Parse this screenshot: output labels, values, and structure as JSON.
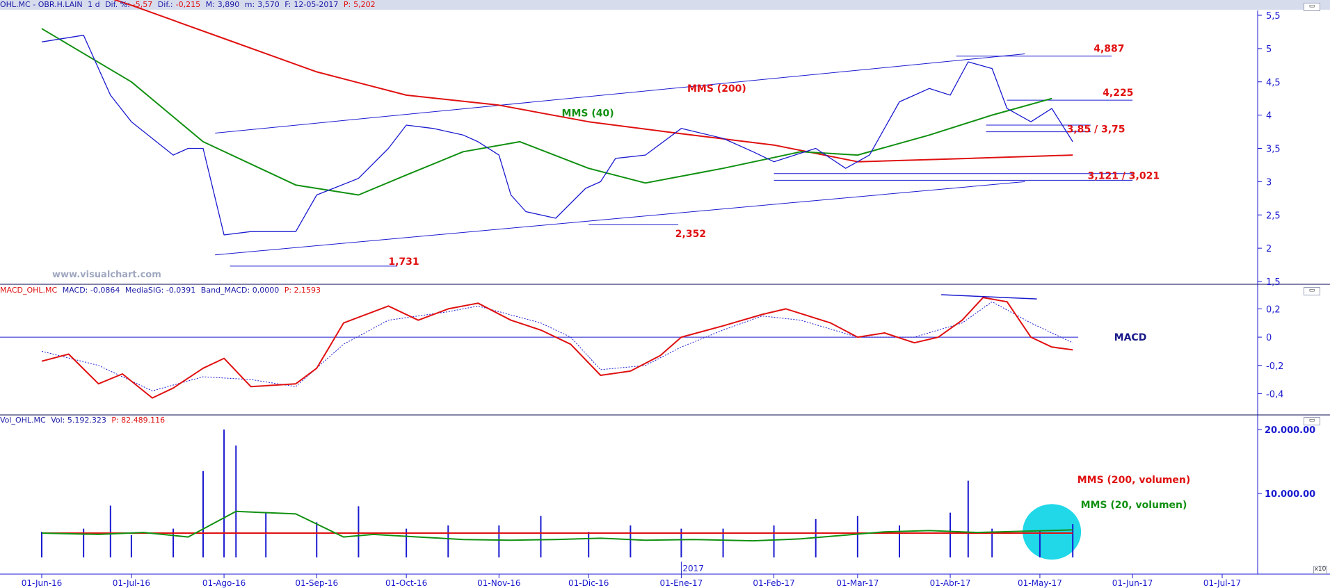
{
  "colors": {
    "price_line": "#1a1ad0",
    "mms200": "#e01010",
    "mms40": "#109010",
    "macd": "#e01010",
    "macd_signal": "#1a1ad0",
    "volume": "#1a1ad0",
    "highlight": "#20d8e8",
    "annotation_red": "#e01010",
    "axis_text": "#1a1ad0"
  },
  "price_header": {
    "symbol": "OHL.MC - OBR.H.LAIN",
    "period": "1 d",
    "change_pct_label": "Dif. %:",
    "change_pct": "-5,57",
    "change_label": "Dif.:",
    "change": "-0,215",
    "max_label": "M:",
    "max": "3,890",
    "min_label": "m:",
    "min": "3,570",
    "date_label": "F:",
    "date": "12-05-2017",
    "p_label": "P:",
    "p": "5,202"
  },
  "macd_header": {
    "symbol": "MACD_OHL.MC",
    "macd": "MACD: -0,0864",
    "signal": "MediaSIG: -0,0391",
    "band": "Band_MACD: 0,0000",
    "p": "P: 2,1593"
  },
  "vol_header": {
    "symbol": "Vol_OHL.MC",
    "vol": "Vol: 5.192.323",
    "p": "P: 82.489.116"
  },
  "watermark": "www.visualchart.com",
  "year_marker": "2017",
  "corner_button": "x10",
  "chart_data": [
    {
      "type": "line",
      "id": "price",
      "series": [
        {
          "name": "MMS (200)",
          "x": [
            "2016-06-01",
            "2016-07-01",
            "2016-08-01",
            "2016-09-01",
            "2016-10-01",
            "2016-11-01",
            "2016-12-01",
            "2017-01-01",
            "2017-02-01",
            "2017-03-01",
            "2017-04-01",
            "2017-05-12"
          ],
          "values": [
            6.1,
            5.65,
            5.15,
            4.65,
            4.3,
            4.15,
            3.9,
            3.72,
            3.55,
            3.3,
            3.34,
            3.4
          ]
        },
        {
          "name": "MMS (40)",
          "x": [
            "2016-06-01",
            "2016-07-01",
            "2016-07-25",
            "2016-08-25",
            "2016-09-15",
            "2016-10-01",
            "2016-10-20",
            "2016-11-08",
            "2016-12-01",
            "2016-12-20",
            "2017-01-15",
            "2017-02-10",
            "2017-03-01",
            "2017-03-25",
            "2017-04-15",
            "2017-05-05"
          ],
          "values": [
            5.3,
            4.5,
            3.6,
            2.95,
            2.8,
            3.1,
            3.45,
            3.6,
            3.2,
            2.98,
            3.2,
            3.45,
            3.4,
            3.7,
            4.0,
            4.25
          ]
        }
      ],
      "close": {
        "x": [
          "2016-06-01",
          "2016-06-15",
          "2016-06-24",
          "2016-07-01",
          "2016-07-15",
          "2016-07-20",
          "2016-07-25",
          "2016-08-01",
          "2016-08-10",
          "2016-08-25",
          "2016-09-01",
          "2016-09-15",
          "2016-09-25",
          "2016-10-01",
          "2016-10-10",
          "2016-10-20",
          "2016-10-25",
          "2016-11-01",
          "2016-11-05",
          "2016-11-10",
          "2016-11-20",
          "2016-11-30",
          "2016-12-05",
          "2016-12-10",
          "2016-12-20",
          "2017-01-01",
          "2017-01-15",
          "2017-01-25",
          "2017-02-01",
          "2017-02-15",
          "2017-02-25",
          "2017-03-05",
          "2017-03-15",
          "2017-03-25",
          "2017-04-01",
          "2017-04-07",
          "2017-04-15",
          "2017-04-20",
          "2017-04-28",
          "2017-05-05",
          "2017-05-12"
        ],
        "values": [
          5.1,
          5.2,
          4.3,
          3.9,
          3.4,
          3.5,
          3.5,
          2.2,
          2.25,
          2.25,
          2.8,
          3.05,
          3.5,
          3.85,
          3.8,
          3.7,
          3.6,
          3.4,
          2.8,
          2.55,
          2.45,
          2.9,
          3.0,
          3.35,
          3.4,
          3.8,
          3.65,
          3.45,
          3.3,
          3.5,
          3.2,
          3.4,
          4.2,
          4.4,
          4.3,
          4.8,
          4.7,
          4.1,
          3.9,
          4.1,
          3.6
        ]
      },
      "title": "",
      "xlabel": "",
      "ylabel": "",
      "ylim": [
        1.5,
        5.5
      ],
      "y_ticks": [
        "5,5",
        "5",
        "4,5",
        "4",
        "3,5",
        "3",
        "2,5",
        "2",
        "1,5"
      ],
      "x_ticks": [
        "01-Jun-16",
        "01-Jul-16",
        "01-Ago-16",
        "01-Sep-16",
        "01-Oct-16",
        "01-Nov-16",
        "01-Dic-16",
        "01-Ene-17",
        "01-Feb-17",
        "01-Mar-17",
        "01-Abr-17",
        "01-May-17",
        "01-Jun-17",
        "01-Jul-17"
      ],
      "grid": false,
      "annotations": [
        "MMS (200)",
        "MMS (40)",
        "4,887",
        "4,225",
        "3,85 / 3,75",
        "3,121 / 3,021",
        "2,352",
        "1,731"
      ]
    },
    {
      "type": "line",
      "id": "macd",
      "series": [
        {
          "name": "MACD",
          "x": [
            "2016-06-01",
            "2016-06-10",
            "2016-06-20",
            "2016-06-28",
            "2016-07-08",
            "2016-07-15",
            "2016-07-25",
            "2016-08-01",
            "2016-08-10",
            "2016-08-25",
            "2016-09-01",
            "2016-09-10",
            "2016-09-25",
            "2016-10-05",
            "2016-10-15",
            "2016-10-25",
            "2016-11-05",
            "2016-11-15",
            "2016-11-25",
            "2016-12-05",
            "2016-12-15",
            "2016-12-25",
            "2017-01-01",
            "2017-01-15",
            "2017-01-28",
            "2017-02-05",
            "2017-02-20",
            "2017-03-01",
            "2017-03-10",
            "2017-03-20",
            "2017-03-28",
            "2017-04-05",
            "2017-04-12",
            "2017-04-20",
            "2017-04-28",
            "2017-05-05",
            "2017-05-12"
          ],
          "values": [
            -0.17,
            -0.12,
            -0.33,
            -0.26,
            -0.43,
            -0.36,
            -0.22,
            -0.15,
            -0.35,
            -0.33,
            -0.22,
            0.1,
            0.22,
            0.12,
            0.2,
            0.24,
            0.12,
            0.05,
            -0.05,
            -0.27,
            -0.24,
            -0.13,
            0.0,
            0.08,
            0.16,
            0.2,
            0.1,
            0.0,
            0.03,
            -0.04,
            0.0,
            0.12,
            0.28,
            0.25,
            0.0,
            -0.07,
            -0.09
          ]
        },
        {
          "name": "MediaSIG",
          "x": [
            "2016-06-01",
            "2016-06-20",
            "2016-07-08",
            "2016-07-25",
            "2016-08-10",
            "2016-08-25",
            "2016-09-10",
            "2016-09-25",
            "2016-10-15",
            "2016-10-25",
            "2016-11-15",
            "2016-11-25",
            "2016-12-05",
            "2016-12-20",
            "2017-01-01",
            "2017-01-15",
            "2017-01-28",
            "2017-02-10",
            "2017-03-01",
            "2017-03-20",
            "2017-04-05",
            "2017-04-15",
            "2017-04-28",
            "2017-05-12"
          ],
          "values": [
            -0.1,
            -0.2,
            -0.38,
            -0.28,
            -0.3,
            -0.35,
            -0.05,
            0.12,
            0.18,
            0.22,
            0.1,
            0.0,
            -0.23,
            -0.2,
            -0.07,
            0.05,
            0.15,
            0.12,
            0.0,
            0.0,
            0.1,
            0.25,
            0.1,
            -0.04
          ]
        }
      ],
      "title": "",
      "xlabel": "",
      "ylabel": "",
      "ylim": [
        -0.55,
        0.31
      ],
      "y_ticks": [
        "0,2",
        "0",
        "-0,2",
        "-0,4"
      ],
      "grid": false,
      "annotations": [
        "MACD"
      ]
    },
    {
      "type": "bar",
      "id": "volume",
      "series": [
        {
          "name": "MMS (200, volumen)",
          "values": [
            3800,
            3800
          ]
        },
        {
          "name": "MMS (20, volumen)",
          "values": [
            3800,
            3600,
            3900,
            3200,
            7200,
            6800,
            3200,
            3600,
            3200,
            2800,
            2700,
            2800,
            3000,
            2700,
            2800,
            2600,
            2900,
            4000,
            4200,
            3900,
            4300
          ]
        }
      ],
      "volume_bars": {
        "x": [
          "2016-06-01",
          "2016-06-15",
          "2016-06-24",
          "2016-07-01",
          "2016-07-15",
          "2016-07-25",
          "2016-08-01",
          "2016-08-05",
          "2016-08-15",
          "2016-09-01",
          "2016-09-15",
          "2016-10-01",
          "2016-10-15",
          "2016-11-01",
          "2016-11-15",
          "2016-12-01",
          "2016-12-15",
          "2017-01-01",
          "2017-01-15",
          "2017-02-01",
          "2017-02-15",
          "2017-03-01",
          "2017-03-15",
          "2017-04-01",
          "2017-04-07",
          "2017-04-15",
          "2017-05-01",
          "2017-05-12"
        ],
        "values": [
          4000,
          4500,
          8100,
          3500,
          4500,
          13500,
          20000,
          17500,
          7000,
          5500,
          8000,
          4500,
          5000,
          5000,
          6500,
          4000,
          5000,
          4500,
          4500,
          5000,
          6000,
          6500,
          5000,
          7000,
          12000,
          4500,
          4200,
          5200
        ]
      },
      "title": "",
      "xlabel": "",
      "ylabel": "",
      "ylim": [
        0,
        20000
      ],
      "y_ticks": [
        "20.000.00",
        "10.000.00"
      ],
      "grid": false,
      "annotations": [
        "MMS (200, volumen)",
        "MMS (20, volumen)"
      ]
    }
  ]
}
